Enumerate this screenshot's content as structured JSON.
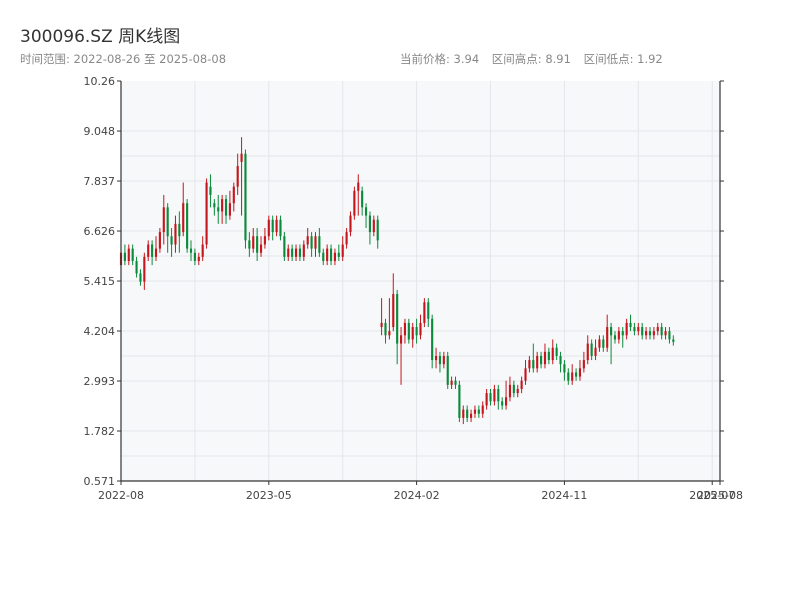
{
  "header": {
    "title": "300096.SZ 周K线图",
    "range_text": "时间范围: 2022-08-26 至 2025-08-08",
    "current_price_text": "当前价格: 3.94",
    "high_text": "区间高点: 8.91",
    "low_text": "区间低点: 1.92"
  },
  "colors": {
    "up": "#c4161c",
    "down": "#0a8a3a",
    "plot_bg": "#f7f8fa",
    "grid": "#e3e6ea"
  },
  "chart_data": {
    "type": "candlestick",
    "title": "300096.SZ 周K线图",
    "y_ticks": [
      "0.571",
      "1.782",
      "2.993",
      "4.204",
      "5.415",
      "6.626",
      "7.837",
      "9.048",
      "10.26"
    ],
    "ylim": [
      0.571,
      10.26
    ],
    "x_ticks": [
      "2022-08",
      "2023-05",
      "2024-02",
      "2024-11",
      "2025-07",
      "2025-08"
    ],
    "xlim_weeks": [
      0,
      154
    ],
    "x_tick_weeks": [
      0,
      38,
      76,
      114,
      152,
      154
    ],
    "grid": true,
    "candles": [
      [
        5.8,
        6.1,
        6.2,
        5.7
      ],
      [
        6.1,
        5.9,
        6.3,
        5.8
      ],
      [
        5.9,
        6.2,
        6.3,
        5.8
      ],
      [
        6.2,
        5.9,
        6.3,
        5.8
      ],
      [
        5.9,
        5.6,
        6.0,
        5.5
      ],
      [
        5.6,
        5.4,
        5.7,
        5.3
      ],
      [
        5.4,
        6.0,
        6.1,
        5.2
      ],
      [
        6.0,
        6.3,
        6.4,
        5.9
      ],
      [
        6.3,
        6.0,
        6.4,
        5.8
      ],
      [
        6.0,
        6.2,
        6.5,
        5.9
      ],
      [
        6.2,
        6.6,
        6.7,
        6.1
      ],
      [
        6.6,
        7.2,
        7.5,
        6.3
      ],
      [
        7.2,
        6.5,
        7.3,
        6.1
      ],
      [
        6.5,
        6.3,
        6.7,
        6.0
      ],
      [
        6.3,
        6.8,
        7.0,
        6.1
      ],
      [
        6.8,
        6.5,
        7.1,
        6.1
      ],
      [
        6.6,
        7.3,
        7.8,
        6.5
      ],
      [
        7.3,
        6.2,
        7.4,
        6.1
      ],
      [
        6.2,
        6.1,
        6.4,
        5.9
      ],
      [
        6.1,
        5.9,
        6.2,
        5.8
      ],
      [
        5.9,
        6.0,
        6.1,
        5.8
      ],
      [
        6.0,
        6.3,
        6.5,
        5.9
      ],
      [
        6.3,
        7.8,
        7.9,
        6.2
      ],
      [
        7.7,
        7.5,
        8.0,
        7.2
      ],
      [
        7.3,
        7.2,
        7.4,
        7.0
      ],
      [
        7.2,
        7.1,
        7.5,
        6.8
      ],
      [
        7.1,
        7.4,
        7.5,
        6.8
      ],
      [
        7.4,
        7.0,
        7.5,
        6.8
      ],
      [
        7.0,
        7.3,
        7.6,
        6.9
      ],
      [
        7.3,
        7.7,
        7.8,
        7.1
      ],
      [
        7.7,
        8.2,
        8.5,
        7.5
      ],
      [
        8.3,
        8.5,
        8.9,
        7.0
      ],
      [
        8.5,
        6.4,
        8.6,
        6.2
      ],
      [
        6.4,
        6.2,
        6.6,
        6.0
      ],
      [
        6.2,
        6.5,
        6.7,
        6.1
      ],
      [
        6.5,
        6.1,
        6.7,
        5.9
      ],
      [
        6.1,
        6.3,
        6.5,
        6.0
      ],
      [
        6.3,
        6.5,
        6.7,
        6.2
      ],
      [
        6.5,
        6.9,
        7.0,
        6.4
      ],
      [
        6.9,
        6.6,
        7.0,
        6.4
      ],
      [
        6.6,
        6.9,
        7.0,
        6.5
      ],
      [
        6.9,
        6.5,
        7.0,
        6.4
      ],
      [
        6.5,
        6.0,
        6.6,
        5.9
      ],
      [
        6.0,
        6.2,
        6.3,
        5.9
      ],
      [
        6.2,
        6.0,
        6.3,
        5.9
      ],
      [
        6.0,
        6.2,
        6.3,
        5.9
      ],
      [
        6.2,
        6.0,
        6.3,
        5.9
      ],
      [
        6.0,
        6.3,
        6.4,
        5.9
      ],
      [
        6.3,
        6.5,
        6.7,
        6.2
      ],
      [
        6.5,
        6.2,
        6.6,
        6.0
      ],
      [
        6.2,
        6.5,
        6.6,
        6.0
      ],
      [
        6.5,
        6.1,
        6.7,
        6.0
      ],
      [
        6.1,
        5.9,
        6.2,
        5.8
      ],
      [
        5.9,
        6.2,
        6.3,
        5.8
      ],
      [
        6.2,
        5.9,
        6.3,
        5.8
      ],
      [
        5.9,
        6.1,
        6.2,
        5.8
      ],
      [
        6.1,
        6.0,
        6.3,
        5.9
      ],
      [
        6.0,
        6.3,
        6.5,
        5.9
      ],
      [
        6.3,
        6.6,
        6.7,
        6.2
      ],
      [
        6.6,
        7.0,
        7.1,
        6.5
      ],
      [
        7.0,
        7.6,
        7.7,
        6.9
      ],
      [
        7.6,
        7.8,
        8.0,
        7.0
      ],
      [
        7.6,
        7.2,
        7.7,
        7.0
      ],
      [
        7.2,
        7.0,
        7.3,
        6.7
      ],
      [
        7.0,
        6.6,
        7.1,
        6.3
      ],
      [
        6.6,
        6.9,
        7.0,
        6.5
      ],
      [
        6.9,
        6.4,
        7.0,
        6.2
      ],
      [
        4.3,
        4.4,
        5.0,
        4.1
      ],
      [
        4.4,
        4.1,
        4.5,
        3.9
      ],
      [
        4.1,
        4.2,
        5.0,
        4.0
      ],
      [
        4.3,
        5.1,
        5.6,
        4.2
      ],
      [
        5.1,
        3.9,
        5.2,
        3.4
      ],
      [
        3.9,
        4.1,
        4.3,
        2.9
      ],
      [
        4.1,
        4.4,
        4.5,
        3.9
      ],
      [
        4.4,
        4.0,
        4.5,
        3.9
      ],
      [
        4.0,
        4.3,
        4.4,
        3.8
      ],
      [
        4.3,
        4.1,
        4.5,
        3.9
      ],
      [
        4.1,
        4.4,
        4.6,
        4.0
      ],
      [
        4.4,
        4.9,
        5.0,
        4.3
      ],
      [
        4.9,
        4.5,
        5.0,
        4.3
      ],
      [
        4.5,
        3.5,
        4.6,
        3.3
      ],
      [
        3.5,
        3.6,
        3.8,
        3.3
      ],
      [
        3.6,
        3.4,
        3.7,
        3.2
      ],
      [
        3.4,
        3.6,
        3.7,
        3.3
      ],
      [
        3.6,
        2.9,
        3.7,
        2.8
      ],
      [
        2.9,
        3.0,
        3.1,
        2.8
      ],
      [
        3.0,
        2.9,
        3.1,
        2.8
      ],
      [
        2.9,
        2.1,
        3.0,
        2.0
      ],
      [
        2.1,
        2.3,
        2.4,
        1.95
      ],
      [
        2.3,
        2.1,
        2.4,
        2.0
      ],
      [
        2.1,
        2.2,
        2.3,
        2.0
      ],
      [
        2.2,
        2.3,
        2.4,
        2.1
      ],
      [
        2.3,
        2.2,
        2.4,
        2.1
      ],
      [
        2.2,
        2.4,
        2.5,
        2.1
      ],
      [
        2.4,
        2.7,
        2.8,
        2.3
      ],
      [
        2.7,
        2.5,
        2.8,
        2.4
      ],
      [
        2.5,
        2.8,
        2.9,
        2.4
      ],
      [
        2.8,
        2.5,
        2.9,
        2.3
      ],
      [
        2.5,
        2.4,
        2.6,
        2.3
      ],
      [
        2.4,
        2.6,
        3.0,
        2.3
      ],
      [
        2.6,
        2.9,
        3.1,
        2.5
      ],
      [
        2.9,
        2.7,
        3.0,
        2.6
      ],
      [
        2.7,
        2.8,
        2.9,
        2.6
      ],
      [
        2.8,
        3.0,
        3.1,
        2.7
      ],
      [
        3.0,
        3.3,
        3.5,
        2.9
      ],
      [
        3.3,
        3.5,
        3.6,
        3.2
      ],
      [
        3.5,
        3.3,
        3.9,
        3.2
      ],
      [
        3.3,
        3.6,
        3.7,
        3.2
      ],
      [
        3.6,
        3.4,
        3.7,
        3.3
      ],
      [
        3.4,
        3.7,
        3.9,
        3.3
      ],
      [
        3.7,
        3.5,
        3.8,
        3.4
      ],
      [
        3.5,
        3.8,
        4.0,
        3.4
      ],
      [
        3.8,
        3.6,
        3.9,
        3.5
      ],
      [
        3.6,
        3.4,
        3.7,
        3.2
      ],
      [
        3.4,
        3.2,
        3.5,
        3.0
      ],
      [
        3.2,
        3.0,
        3.3,
        2.9
      ],
      [
        3.0,
        3.2,
        3.4,
        2.9
      ],
      [
        3.2,
        3.1,
        3.3,
        3.0
      ],
      [
        3.1,
        3.3,
        3.5,
        3.0
      ],
      [
        3.3,
        3.5,
        3.7,
        3.2
      ],
      [
        3.5,
        3.9,
        4.1,
        3.4
      ],
      [
        3.9,
        3.6,
        4.0,
        3.5
      ],
      [
        3.6,
        3.8,
        4.0,
        3.5
      ],
      [
        3.8,
        4.0,
        4.1,
        3.7
      ],
      [
        4.0,
        3.8,
        4.1,
        3.7
      ],
      [
        3.8,
        4.3,
        4.6,
        3.7
      ],
      [
        4.3,
        4.1,
        4.4,
        3.4
      ],
      [
        4.1,
        4.0,
        4.2,
        3.9
      ],
      [
        4.0,
        4.2,
        4.3,
        3.9
      ],
      [
        4.2,
        4.1,
        4.3,
        3.8
      ],
      [
        4.1,
        4.4,
        4.5,
        4.0
      ],
      [
        4.4,
        4.3,
        4.6,
        4.2
      ],
      [
        4.3,
        4.2,
        4.4,
        4.1
      ],
      [
        4.2,
        4.3,
        4.4,
        4.1
      ],
      [
        4.3,
        4.1,
        4.4,
        4.0
      ],
      [
        4.1,
        4.2,
        4.3,
        4.0
      ],
      [
        4.2,
        4.1,
        4.3,
        4.0
      ],
      [
        4.1,
        4.2,
        4.3,
        4.0
      ],
      [
        4.2,
        4.3,
        4.4,
        4.1
      ],
      [
        4.3,
        4.1,
        4.4,
        4.0
      ],
      [
        4.1,
        4.2,
        4.3,
        4.0
      ],
      [
        4.2,
        4.0,
        4.3,
        3.9
      ],
      [
        4.0,
        3.94,
        4.1,
        3.85
      ]
    ]
  }
}
